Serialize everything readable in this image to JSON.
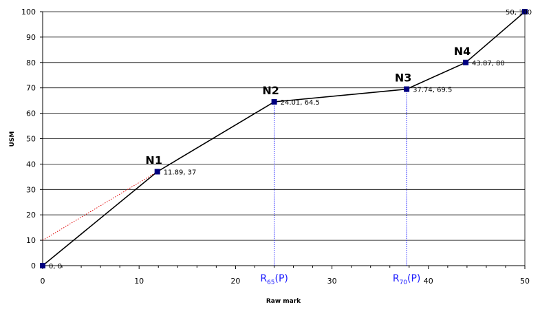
{
  "chart_data": {
    "type": "line",
    "xlabel": "Raw mark",
    "ylabel": "USM",
    "xlim": [
      0,
      50
    ],
    "ylim": [
      0,
      100
    ],
    "x_ticks": [
      0,
      10,
      20,
      30,
      40,
      50
    ],
    "y_ticks": [
      0,
      10,
      20,
      30,
      40,
      50,
      60,
      70,
      80,
      90,
      100
    ],
    "grid": "horizontal",
    "series": [
      {
        "x": [
          0,
          11.89,
          24.01,
          37.74,
          43.87,
          50
        ],
        "y": [
          0,
          37,
          64.5,
          69.5,
          80,
          100
        ],
        "point_labels": [
          "0, 0",
          "11.89, 37",
          "24.01, 64.5",
          "37.74, 69.5",
          "43.87, 80",
          "50, 100"
        ],
        "color": "#000000",
        "marker_color": "#000080"
      }
    ],
    "nodes": [
      {
        "label": "N1",
        "x": 11.89,
        "y": 37
      },
      {
        "label": "N2",
        "x": 24.01,
        "y": 64.5
      },
      {
        "label": "N3",
        "x": 37.74,
        "y": 69.5
      },
      {
        "label": "N4",
        "x": 43.87,
        "y": 80
      }
    ],
    "extension_line": {
      "x": [
        0,
        11.89
      ],
      "y": [
        10,
        37
      ],
      "color": "#e00000",
      "style": "dotted"
    },
    "reference_lines": [
      {
        "x": 24.01,
        "from_y": 0,
        "to_y": 64.5,
        "base": "R",
        "sub": "65",
        "suffix": "(P)",
        "color": "#1a1aff"
      },
      {
        "x": 37.74,
        "from_y": 0,
        "to_y": 69.5,
        "base": "R",
        "sub": "70",
        "suffix": "(P)",
        "color": "#1a1aff"
      }
    ]
  }
}
